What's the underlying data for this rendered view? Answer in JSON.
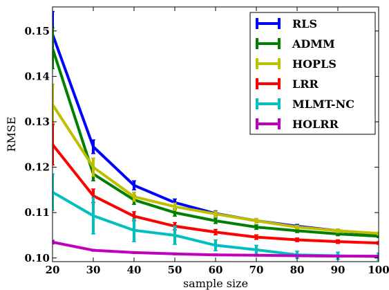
{
  "chart_data": {
    "type": "line",
    "xlabel": "sample size",
    "ylabel": "RMSE",
    "xlim": [
      20,
      100
    ],
    "ylim": [
      0.0992,
      0.1553
    ],
    "x_ticks": [
      "20",
      "30",
      "40",
      "50",
      "60",
      "70",
      "80",
      "90",
      "100"
    ],
    "y_ticks": [
      "0.10",
      "0.11",
      "0.12",
      "0.13",
      "0.14",
      "0.15"
    ],
    "legend_position": "top-right",
    "grid": false,
    "x": [
      20,
      30,
      40,
      50,
      60,
      70,
      80,
      90,
      100
    ],
    "series": [
      {
        "name": "RLS",
        "color": "#0000ff",
        "values": [
          0.1493,
          0.1245,
          0.116,
          0.1122,
          0.1098,
          0.1082,
          0.107,
          0.106,
          0.1053
        ],
        "errors": [
          0.005,
          0.0015,
          0.001,
          0.0008,
          0.0006,
          0.0005,
          0.0004,
          0.0004,
          0.0003
        ]
      },
      {
        "name": "ADMM",
        "color": "#008000",
        "values": [
          0.1462,
          0.1185,
          0.1128,
          0.11,
          0.1082,
          0.1068,
          0.106,
          0.1053,
          0.1048
        ],
        "errors": [
          0.0045,
          0.0015,
          0.001,
          0.0008,
          0.0006,
          0.0005,
          0.0004,
          0.0004,
          0.0003
        ]
      },
      {
        "name": "HOPLS",
        "color": "#bfbf00",
        "values": [
          0.1338,
          0.12,
          0.1135,
          0.1113,
          0.1097,
          0.1082,
          0.1068,
          0.106,
          0.1054
        ],
        "errors": [
          0.0045,
          0.002,
          0.001,
          0.0008,
          0.0006,
          0.0005,
          0.0004,
          0.0004,
          0.0003
        ]
      },
      {
        "name": "LRR",
        "color": "#ff0000",
        "values": [
          0.125,
          0.1137,
          0.1092,
          0.107,
          0.1057,
          0.1046,
          0.104,
          0.1036,
          0.1033
        ],
        "errors": [
          0.0045,
          0.0015,
          0.001,
          0.0008,
          0.0006,
          0.0005,
          0.0004,
          0.0004,
          0.0003
        ]
      },
      {
        "name": "MLMT-NC",
        "color": "#00bfbf",
        "values": [
          0.1145,
          0.1093,
          0.1061,
          0.105,
          0.1028,
          0.1018,
          0.1007,
          0.1005,
          0.1003
        ],
        "errors": [
          0.004,
          0.004,
          0.0025,
          0.002,
          0.0012,
          0.001,
          0.0008,
          0.0008,
          0.0008
        ]
      },
      {
        "name": "HOLRR",
        "color": "#bf00bf",
        "values": [
          0.1035,
          0.1017,
          0.1012,
          0.1009,
          0.1007,
          0.1006,
          0.1005,
          0.1004,
          0.1004
        ],
        "errors": [
          0.0004,
          0.0002,
          0.0002,
          0.0002,
          0.0002,
          0.0002,
          0.0002,
          0.0002,
          0.0002
        ]
      }
    ]
  }
}
